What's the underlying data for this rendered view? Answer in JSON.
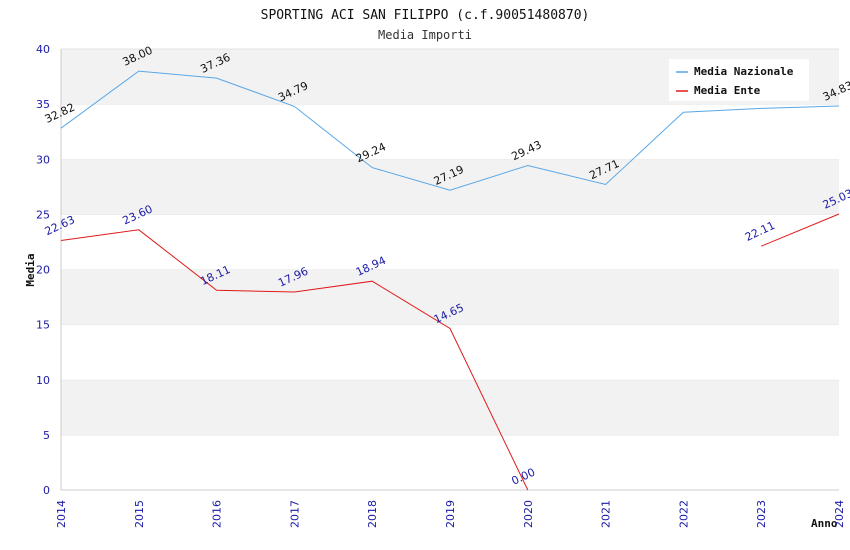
{
  "chart_data": {
    "type": "line",
    "title": "SPORTING ACI SAN FILIPPO (c.f.90051480870)",
    "subtitle": "Media Importi",
    "xlabel": "Anno",
    "ylabel": "Media",
    "ylim": [
      0,
      40
    ],
    "yticks": [
      0,
      5,
      10,
      15,
      20,
      25,
      30,
      35,
      40
    ],
    "x": [
      "2014",
      "2015",
      "2016",
      "2017",
      "2018",
      "2019",
      "2020",
      "2021",
      "2022",
      "2023",
      "2024"
    ],
    "grid": "horizontal-bands",
    "legend_position": "top-right",
    "series": [
      {
        "name": "Media Nazionale",
        "color": "#5aa7e6",
        "label_color": "#111111",
        "values": [
          32.82,
          38.0,
          37.36,
          34.79,
          29.24,
          27.19,
          29.43,
          27.71,
          34.27,
          34.61,
          34.83
        ],
        "labels": [
          "32.82",
          "38.00",
          "37.36",
          "34.79",
          "29.24",
          "27.19",
          "29.43",
          "27.71",
          "",
          "",
          "34.83"
        ]
      },
      {
        "name": "Media Ente",
        "color": "#e01a1a",
        "label_color": "#1a1aa6",
        "values": [
          22.63,
          23.6,
          18.11,
          17.96,
          18.94,
          14.65,
          0.0,
          null,
          null,
          22.11,
          25.03
        ],
        "labels": [
          "22.63",
          "23.60",
          "18.11",
          "17.96",
          "18.94",
          "14.65",
          "0.00",
          "",
          "",
          "22.11",
          "25.03"
        ]
      }
    ]
  }
}
